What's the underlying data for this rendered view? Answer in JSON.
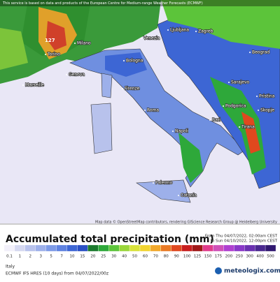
{
  "header": {
    "notice": "This service is based on data and products of the European Centre for Medium-range Weather Forecasts (ECMWF)"
  },
  "map": {
    "cities": [
      "Ljubljana",
      "Zagreb",
      "Beograd",
      "Sarajevo",
      "Podgorica",
      "Pristina",
      "Skopje",
      "Tirana",
      "Venezia",
      "Milano",
      "Torino",
      "Genova",
      "Bologna",
      "Firenze",
      "Marseille",
      "Roma",
      "Napoli",
      "Bari",
      "Palermo",
      "Catania"
    ],
    "peak_label": "127",
    "attribution": "Map data © OpenStreetMap contributors, rendering GIScience Research Group @ Heidelberg University"
  },
  "legend": {
    "title": "Accumulated total precipitation (mm)",
    "from": "From Thu 04/07/2022, 02:00am CEST",
    "to": "to Sun 04/10/2022, 12:00pm CEST",
    "levels": [
      0.1,
      1,
      2,
      3,
      5,
      7,
      10,
      15,
      20,
      25,
      30,
      40,
      50,
      60,
      70,
      80,
      90,
      100,
      125,
      150,
      175,
      200,
      250,
      300,
      400,
      500
    ],
    "colors": [
      "#f2f0fa",
      "#d5d8f0",
      "#b8c2ec",
      "#9db0ea",
      "#7d9ae6",
      "#5f82e0",
      "#3d66d4",
      "#2a4fc4",
      "#1b7a2e",
      "#2ea83a",
      "#5cc43a",
      "#9ad63a",
      "#d8e23a",
      "#f2d430",
      "#f2a82a",
      "#ea7a24",
      "#e0481e",
      "#c81e1e",
      "#a01818",
      "#e03c8c",
      "#d050b8",
      "#b040d0",
      "#8a38c8",
      "#6a30b0",
      "#4a2890",
      "#301870"
    ]
  },
  "footer": {
    "region": "Italy",
    "model": "ECMWF IFS HRES (10 days) from 04/07/2022/00z",
    "brand": "meteologix.com"
  }
}
